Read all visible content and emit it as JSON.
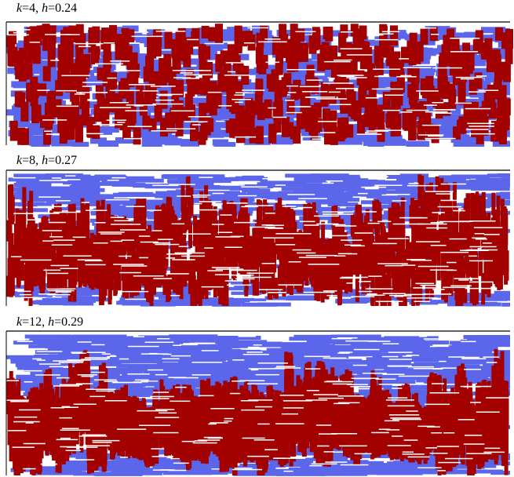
{
  "colors": {
    "vertical_rods": "#a30000",
    "horizontal_rods": "#5b66ea",
    "background": "#ffffff",
    "border": "#000000"
  },
  "panels": [
    {
      "k_symbol": "k",
      "k_value": "4",
      "h_symbol": "h",
      "h_value": "0.24",
      "separator": ", "
    },
    {
      "k_symbol": "k",
      "k_value": "8",
      "h_symbol": "h",
      "h_value": "0.27",
      "separator": ", "
    },
    {
      "k_symbol": "k",
      "k_value": "12",
      "h_symbol": "h",
      "h_value": "0.29",
      "separator": ",  "
    }
  ]
}
